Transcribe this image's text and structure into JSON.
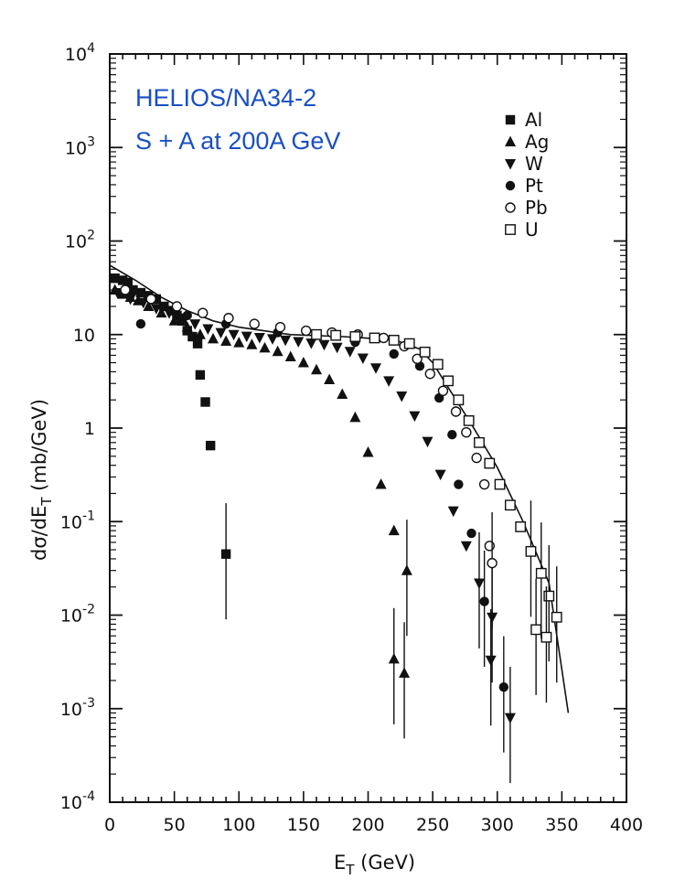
{
  "chart_data": {
    "type": "scatter",
    "title_lines": [
      "HELIOS/NA34-2",
      "S + A at 200A GeV"
    ],
    "title_color": "#1a4fc4",
    "xlabel": {
      "main": "E",
      "sub": "T",
      "unit": " (GeV)"
    },
    "ylabel": {
      "pre": "dσ/dE",
      "sub": "T",
      "post": " (mb/GeV)"
    },
    "xlim": [
      0,
      400
    ],
    "ylim_log10": [
      -4,
      4
    ],
    "x_ticks": [
      0,
      50,
      100,
      150,
      200,
      250,
      300,
      350,
      400
    ],
    "y_ticks": [
      {
        "base": "10",
        "exp": "-4"
      },
      {
        "base": "10",
        "exp": "-3"
      },
      {
        "base": "10",
        "exp": "-2"
      },
      {
        "base": "10",
        "exp": "-1"
      },
      {
        "base": "1",
        "exp": ""
      },
      {
        "base": "10",
        "exp": ""
      },
      {
        "base": "10",
        "exp": "2"
      },
      {
        "base": "10",
        "exp": "3"
      },
      {
        "base": "10",
        "exp": "4"
      }
    ],
    "legend_position": "top-right",
    "series": [
      {
        "name": "Al",
        "marker": "square-filled",
        "points": [
          [
            4,
            40
          ],
          [
            10,
            38
          ],
          [
            14,
            36
          ],
          [
            18,
            30
          ],
          [
            24,
            28
          ],
          [
            30,
            26
          ],
          [
            36,
            24
          ],
          [
            42,
            20
          ],
          [
            48,
            18
          ],
          [
            52,
            16
          ],
          [
            56,
            14
          ],
          [
            60,
            11
          ],
          [
            64,
            9.5
          ],
          [
            68,
            8
          ],
          [
            70,
            3.7
          ],
          [
            74,
            1.9
          ],
          [
            78,
            0.65
          ],
          [
            90,
            0.045
          ]
        ]
      },
      {
        "name": "Ag",
        "marker": "triangle-up-filled",
        "points": [
          [
            4,
            30
          ],
          [
            10,
            27
          ],
          [
            16,
            25
          ],
          [
            22,
            23
          ],
          [
            30,
            20
          ],
          [
            40,
            17
          ],
          [
            50,
            14
          ],
          [
            60,
            12
          ],
          [
            70,
            10
          ],
          [
            80,
            9
          ],
          [
            90,
            8.5
          ],
          [
            100,
            8.2
          ],
          [
            110,
            7.8
          ],
          [
            120,
            7.2
          ],
          [
            130,
            6.6
          ],
          [
            140,
            5.8
          ],
          [
            150,
            5
          ],
          [
            160,
            4.2
          ],
          [
            170,
            3.3
          ],
          [
            180,
            2.3
          ],
          [
            190,
            1.3
          ],
          [
            200,
            0.55
          ],
          [
            210,
            0.25
          ],
          [
            220,
            0.08
          ],
          [
            230,
            0.03
          ],
          [
            220,
            0.0034
          ],
          [
            228,
            0.0024
          ]
        ]
      },
      {
        "name": "W",
        "marker": "triangle-down-filled",
        "points": [
          [
            6,
            28
          ],
          [
            16,
            24
          ],
          [
            26,
            22
          ],
          [
            36,
            19
          ],
          [
            46,
            17
          ],
          [
            56,
            15
          ],
          [
            66,
            13
          ],
          [
            76,
            11.5
          ],
          [
            86,
            10.5
          ],
          [
            96,
            10
          ],
          [
            106,
            9.6
          ],
          [
            116,
            9.3
          ],
          [
            126,
            9
          ],
          [
            136,
            8.7
          ],
          [
            146,
            8.4
          ],
          [
            156,
            8.1
          ],
          [
            166,
            7.8
          ],
          [
            176,
            7.3
          ],
          [
            186,
            6.6
          ],
          [
            196,
            5.6
          ],
          [
            206,
            4.4
          ],
          [
            216,
            3.2
          ],
          [
            226,
            2.2
          ],
          [
            236,
            1.35
          ],
          [
            246,
            0.72
          ],
          [
            256,
            0.32
          ],
          [
            266,
            0.13
          ],
          [
            276,
            0.055
          ],
          [
            286,
            0.022
          ],
          [
            296,
            0.0095
          ],
          [
            295,
            0.0033
          ],
          [
            310,
            0.0008
          ]
        ]
      },
      {
        "name": "Pt",
        "marker": "circle-filled",
        "points": [
          [
            24,
            13
          ],
          [
            60,
            16
          ],
          [
            90,
            13
          ],
          [
            130,
            10.5
          ],
          [
            190,
            8.3
          ],
          [
            220,
            6.2
          ],
          [
            240,
            4.6
          ],
          [
            255,
            2.1
          ],
          [
            265,
            0.85
          ],
          [
            270,
            0.25
          ],
          [
            280,
            0.075
          ],
          [
            290,
            0.014
          ],
          [
            305,
            0.0017
          ]
        ]
      },
      {
        "name": "Pb",
        "marker": "circle-open",
        "points": [
          [
            12,
            30
          ],
          [
            32,
            24
          ],
          [
            52,
            20
          ],
          [
            72,
            17
          ],
          [
            92,
            15
          ],
          [
            112,
            13
          ],
          [
            132,
            12
          ],
          [
            152,
            11
          ],
          [
            172,
            10.5
          ],
          [
            192,
            10
          ],
          [
            212,
            9.2
          ],
          [
            228,
            7.5
          ],
          [
            238,
            5.5
          ],
          [
            248,
            3.8
          ],
          [
            258,
            2.5
          ],
          [
            268,
            1.5
          ],
          [
            276,
            0.9
          ],
          [
            284,
            0.48
          ],
          [
            290,
            0.25
          ],
          [
            294,
            0.055
          ],
          [
            296,
            0.036
          ]
        ]
      },
      {
        "name": "U",
        "marker": "square-open",
        "points": [
          [
            160,
            10
          ],
          [
            175,
            9.8
          ],
          [
            190,
            9.5
          ],
          [
            205,
            9.2
          ],
          [
            220,
            8.7
          ],
          [
            232,
            8
          ],
          [
            244,
            6.5
          ],
          [
            254,
            4.8
          ],
          [
            262,
            3.2
          ],
          [
            270,
            2
          ],
          [
            278,
            1.2
          ],
          [
            286,
            0.7
          ],
          [
            294,
            0.42
          ],
          [
            302,
            0.25
          ],
          [
            310,
            0.15
          ],
          [
            318,
            0.088
          ],
          [
            326,
            0.048
          ],
          [
            334,
            0.028
          ],
          [
            340,
            0.016
          ],
          [
            346,
            0.0095
          ],
          [
            330,
            0.007
          ],
          [
            338,
            0.0058
          ]
        ]
      }
    ],
    "fit_curve": {
      "name": "fit",
      "points": [
        [
          0,
          55
        ],
        [
          20,
          38
        ],
        [
          40,
          25
        ],
        [
          60,
          18
        ],
        [
          80,
          14
        ],
        [
          100,
          12
        ],
        [
          140,
          10
        ],
        [
          180,
          9.5
        ],
        [
          220,
          8.8
        ],
        [
          240,
          7
        ],
        [
          250,
          5
        ],
        [
          260,
          3
        ],
        [
          280,
          1.1
        ],
        [
          300,
          0.38
        ],
        [
          320,
          0.1
        ],
        [
          340,
          0.022
        ],
        [
          355,
          0.0009
        ]
      ]
    }
  }
}
